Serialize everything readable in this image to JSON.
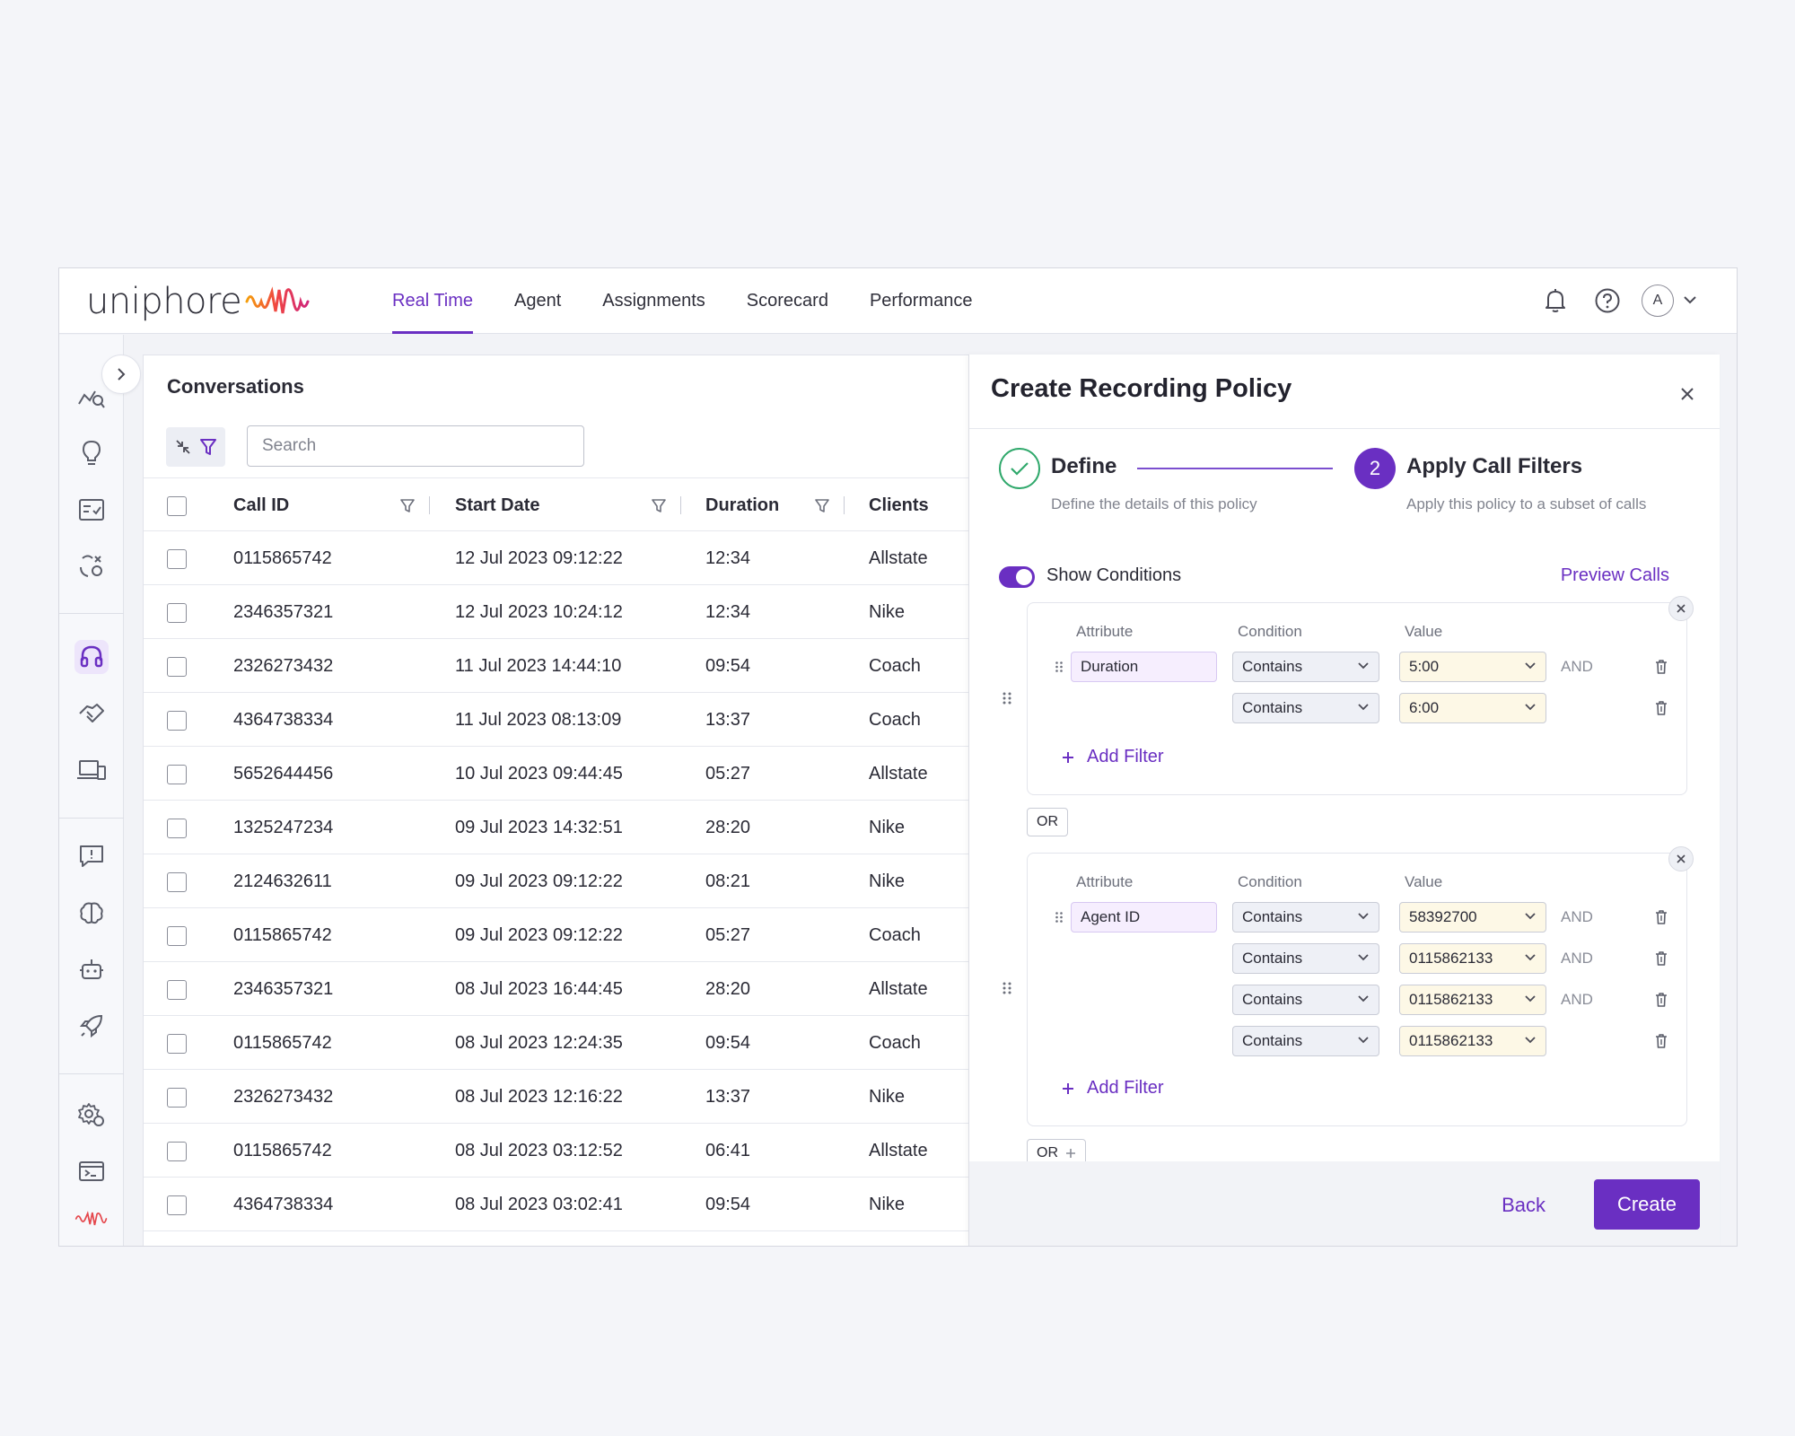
{
  "header": {
    "logo_text": "uniphore",
    "nav": [
      "Real Time",
      "Agent",
      "Assignments",
      "Scorecard",
      "Performance"
    ],
    "active_nav": "Real Time",
    "avatar_initial": "A"
  },
  "conversations": {
    "title": "Conversations",
    "search_placeholder": "Search",
    "columns": [
      "Call ID",
      "Start Date",
      "Duration",
      "Clients"
    ],
    "rows": [
      [
        "0115865742",
        "12 Jul 2023 09:12:22",
        "12:34",
        "Allstate"
      ],
      [
        "2346357321",
        "12 Jul 2023 10:24:12",
        "12:34",
        "Nike"
      ],
      [
        "2326273432",
        "11 Jul 2023 14:44:10",
        "09:54",
        "Coach"
      ],
      [
        "4364738334",
        "11 Jul 2023 08:13:09",
        "13:37",
        "Coach"
      ],
      [
        "5652644456",
        "10 Jul 2023 09:44:45",
        "05:27",
        "Allstate"
      ],
      [
        "1325247234",
        "09 Jul 2023 14:32:51",
        "28:20",
        "Nike"
      ],
      [
        "2124632611",
        "09 Jul 2023 09:12:22",
        "08:21",
        "Nike"
      ],
      [
        "0115865742",
        "09 Jul 2023 09:12:22",
        "05:27",
        "Coach"
      ],
      [
        "2346357321",
        "08 Jul 2023 16:44:45",
        "28:20",
        "Allstate"
      ],
      [
        "0115865742",
        "08 Jul 2023 12:24:35",
        "09:54",
        "Coach"
      ],
      [
        "2326273432",
        "08 Jul 2023 12:16:22",
        "13:37",
        "Nike"
      ],
      [
        "0115865742",
        "08 Jul 2023 03:12:52",
        "06:41",
        "Allstate"
      ],
      [
        "4364738334",
        "08 Jul 2023 03:02:41",
        "09:54",
        "Nike"
      ]
    ]
  },
  "drawer": {
    "title": "Create Recording Policy",
    "step1": {
      "title": "Define",
      "subtitle": "Define the details of this policy"
    },
    "step2": {
      "number": "2",
      "title": "Apply Call Filters",
      "subtitle": "Apply this policy to a subset of calls"
    },
    "toggle_label": "Show Conditions",
    "preview_label": "Preview Calls",
    "labels": {
      "attribute": "Attribute",
      "condition": "Condition",
      "value": "Value",
      "and": "AND",
      "add_filter": "Add Filter",
      "or": "OR"
    },
    "group1": {
      "attribute": "Duration",
      "rows": [
        {
          "condition": "Contains",
          "value": "5:00",
          "and": true
        },
        {
          "condition": "Contains",
          "value": "6:00",
          "and": false
        }
      ]
    },
    "group2": {
      "attribute": "Agent ID",
      "rows": [
        {
          "condition": "Contains",
          "value": "58392700",
          "and": true
        },
        {
          "condition": "Contains",
          "value": "0115862133",
          "and": true
        },
        {
          "condition": "Contains",
          "value": "0115862133",
          "and": true
        },
        {
          "condition": "Contains",
          "value": "0115862133",
          "and": false
        }
      ]
    },
    "back_label": "Back",
    "create_label": "Create"
  },
  "colors": {
    "accent": "#6a2fc2",
    "success": "#2fa86b",
    "value_bg": "#fdf8e6",
    "attribute_bg": "#f6eefe"
  }
}
